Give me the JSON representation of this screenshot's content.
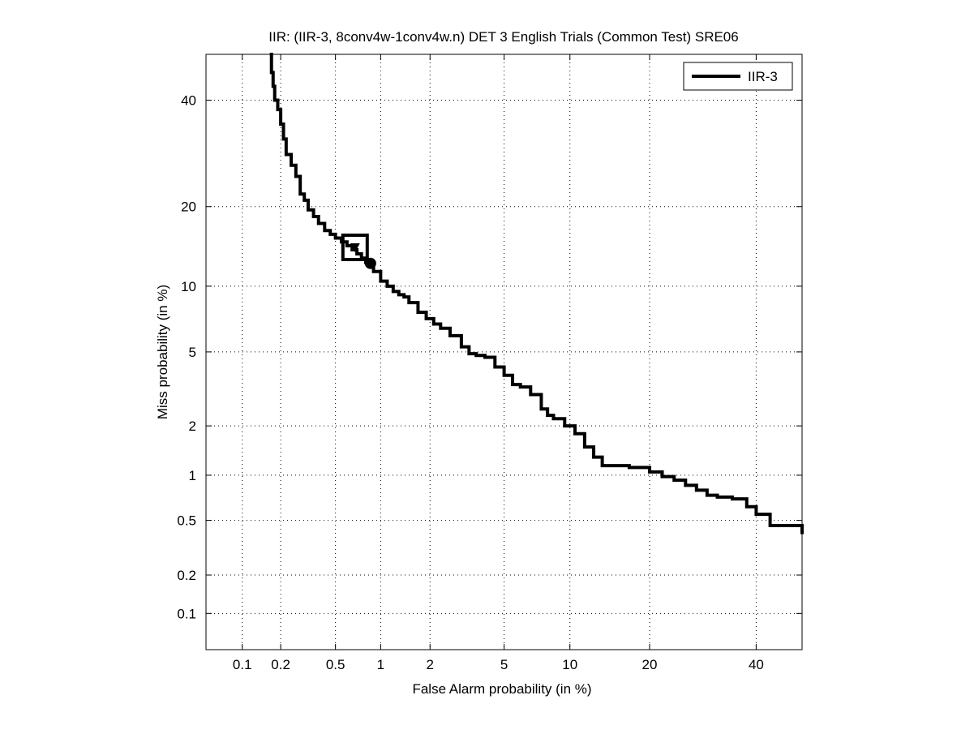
{
  "chart_data": {
    "type": "line",
    "title": "IIR: (IIR-3, 8conv4w-1conv4w.n) DET 3 English Trials (Common Test) SRE06",
    "xlabel": "False Alarm probability (in %)",
    "ylabel": "Miss probability (in %)",
    "xscale": "normal-deviate",
    "yscale": "normal-deviate",
    "xlim": [
      0.05,
      50
    ],
    "ylim": [
      0.05,
      50
    ],
    "xticks": [
      {
        "value": 0.1,
        "label": "0.1"
      },
      {
        "value": 0.2,
        "label": "0.2"
      },
      {
        "value": 0.5,
        "label": "0.5"
      },
      {
        "value": 1,
        "label": "1"
      },
      {
        "value": 2,
        "label": "2"
      },
      {
        "value": 5,
        "label": "5"
      },
      {
        "value": 10,
        "label": "10"
      },
      {
        "value": 20,
        "label": "20"
      },
      {
        "value": 40,
        "label": "40"
      }
    ],
    "yticks": [
      {
        "value": 0.1,
        "label": "0.1"
      },
      {
        "value": 0.2,
        "label": "0.2"
      },
      {
        "value": 0.5,
        "label": "0.5"
      },
      {
        "value": 1,
        "label": "1"
      },
      {
        "value": 2,
        "label": "2"
      },
      {
        "value": 5,
        "label": "5"
      },
      {
        "value": 10,
        "label": "10"
      },
      {
        "value": 20,
        "label": "20"
      },
      {
        "value": 40,
        "label": "40"
      }
    ],
    "grid": true,
    "legend": {
      "position": "top-right",
      "entries": [
        "IIR-3"
      ]
    },
    "series": [
      {
        "name": "IIR-3",
        "color": "#000000",
        "x": [
          0.165,
          0.17,
          0.175,
          0.18,
          0.19,
          0.2,
          0.21,
          0.22,
          0.24,
          0.26,
          0.28,
          0.3,
          0.32,
          0.35,
          0.38,
          0.42,
          0.46,
          0.5,
          0.55,
          0.6,
          0.65,
          0.7,
          0.75,
          0.8,
          0.85,
          0.9,
          1.0,
          1.1,
          1.2,
          1.3,
          1.4,
          1.5,
          1.7,
          1.9,
          2.1,
          2.3,
          2.6,
          3.0,
          3.3,
          3.6,
          4.0,
          4.5,
          5.0,
          5.5,
          6.0,
          6.7,
          7.5,
          8.0,
          8.5,
          9.5,
          10.5,
          11.5,
          12.5,
          13.5,
          15.0,
          17.0,
          20.0,
          22.0,
          24.0,
          26.0,
          28.0,
          30.0,
          32.0,
          35.0,
          38.0,
          40.0,
          43.0,
          46.0,
          50.0
        ],
        "y": [
          50.0,
          46.0,
          43.0,
          40.0,
          38.0,
          35.0,
          32.0,
          29.0,
          27.0,
          25.0,
          22.0,
          21.0,
          19.5,
          18.5,
          17.5,
          16.5,
          16.0,
          15.5,
          15.0,
          14.5,
          14.0,
          13.5,
          13.0,
          12.5,
          12.0,
          11.5,
          10.5,
          10.0,
          9.5,
          9.2,
          9.0,
          8.5,
          7.7,
          7.2,
          6.8,
          6.5,
          6.0,
          5.3,
          4.9,
          4.8,
          4.7,
          4.2,
          3.8,
          3.4,
          3.3,
          3.0,
          2.5,
          2.3,
          2.2,
          2.0,
          1.8,
          1.5,
          1.3,
          1.15,
          1.15,
          1.12,
          1.05,
          0.98,
          0.93,
          0.86,
          0.8,
          0.74,
          0.72,
          0.7,
          0.62,
          0.55,
          0.46,
          0.46,
          0.4
        ]
      }
    ],
    "markers": [
      {
        "kind": "square",
        "x": 0.68,
        "y": 14.3
      },
      {
        "kind": "triangle",
        "x": 0.68,
        "y": 14.3
      },
      {
        "kind": "circle",
        "x": 0.86,
        "y": 12.4
      }
    ]
  }
}
